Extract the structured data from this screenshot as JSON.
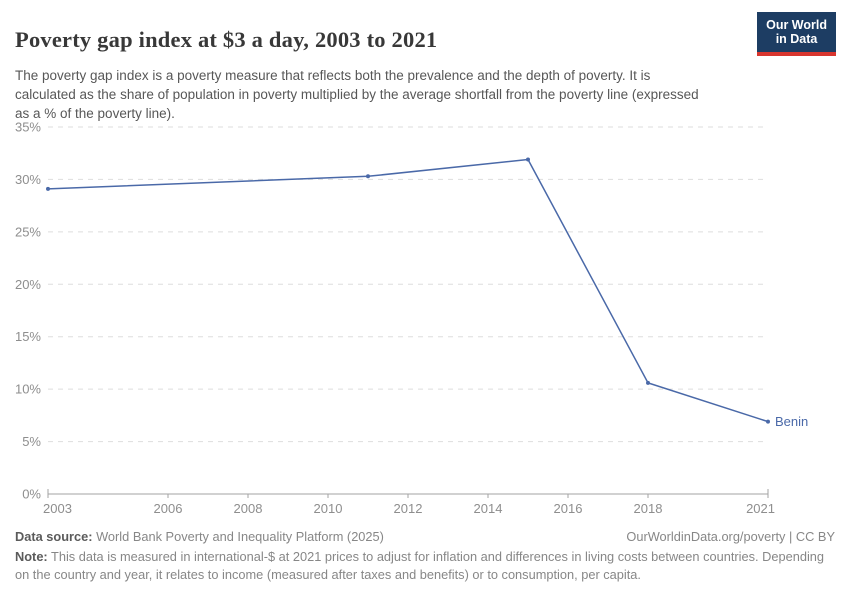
{
  "header": {
    "title": "Poverty gap index at $3 a day, 2003 to 2021",
    "subtitle": "The poverty gap index is a poverty measure that reflects both the prevalence and the depth of poverty. It is calculated as the share of population in poverty multiplied by the average shortfall from the poverty line (expressed as a % of the poverty line).",
    "logo": {
      "line1": "Our World",
      "line2": "in Data",
      "bg_color": "#1d3d63",
      "accent_color": "#d8352e"
    }
  },
  "chart_data": {
    "type": "line",
    "title": "Poverty gap index at $3 a day, 2003 to 2021",
    "xlabel": "",
    "ylabel": "",
    "xlim": [
      2003,
      2021
    ],
    "ylim": [
      0,
      35
    ],
    "x_ticks": [
      2003,
      2006,
      2008,
      2010,
      2012,
      2014,
      2016,
      2018,
      2021
    ],
    "y_ticks": [
      0,
      5,
      10,
      15,
      20,
      25,
      30,
      35
    ],
    "y_tick_suffix": "%",
    "grid": "horizontal-dashed",
    "legend_position": "end-of-line-label",
    "series": [
      {
        "name": "Benin",
        "color": "#4a69a8",
        "x": [
          2003,
          2011,
          2015,
          2018,
          2021
        ],
        "values": [
          29.1,
          30.3,
          31.9,
          10.6,
          6.9
        ]
      }
    ],
    "colors": {
      "gridline": "#dddddd",
      "axis_line": "#a3a3a3",
      "tick_text": "#8e8e8e"
    }
  },
  "footer": {
    "datasource_label": "Data source:",
    "datasource_value": " World Bank Poverty and Inequality Platform (2025)",
    "rights": "OurWorldinData.org/poverty | CC BY",
    "note_label": "Note:",
    "note_value": " This data is measured in international-$ at 2021 prices to adjust for inflation and differences in living costs between countries. Depending on the country and year, it relates to income (measured after taxes and benefits) or to consumption, per capita."
  }
}
